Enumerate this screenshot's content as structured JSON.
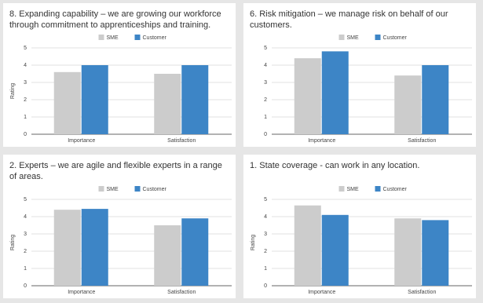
{
  "chart_data": [
    {
      "type": "bar",
      "title": "8. Expanding capability – we are growing our workforce through commitment to apprenticeships and training.",
      "y_label": "Rating",
      "categories": [
        "Importance",
        "Satisfaction"
      ],
      "series": [
        {
          "name": "SME",
          "color": "#cccccc",
          "values": [
            3.6,
            3.5
          ]
        },
        {
          "name": "Customer",
          "color": "#3d85c6",
          "values": [
            4.0,
            4.0
          ]
        }
      ],
      "ylim": [
        0,
        5
      ],
      "yticks": [
        0,
        1,
        2,
        3,
        4,
        5
      ],
      "grid": true
    },
    {
      "type": "bar",
      "title": "6. Risk mitigation – we manage risk on behalf of our customers.",
      "categories": [
        "Importance",
        "Satisfaction"
      ],
      "series": [
        {
          "name": "SME",
          "color": "#cccccc",
          "values": [
            4.4,
            3.4
          ]
        },
        {
          "name": "Customer",
          "color": "#3d85c6",
          "values": [
            4.8,
            4.0
          ]
        }
      ],
      "ylim": [
        0,
        5
      ],
      "yticks": [
        0,
        1,
        2,
        3,
        4,
        5
      ],
      "grid": true
    },
    {
      "type": "bar",
      "title": "2. Experts – we are agile and flexible experts in a range of areas.",
      "y_label": "Rating",
      "categories": [
        "Importance",
        "Satisfaction"
      ],
      "series": [
        {
          "name": "SME",
          "color": "#cccccc",
          "values": [
            4.4,
            3.5
          ]
        },
        {
          "name": "Customer",
          "color": "#3d85c6",
          "values": [
            4.45,
            3.9
          ]
        }
      ],
      "ylim": [
        0,
        5
      ],
      "yticks": [
        0,
        1,
        2,
        3,
        4,
        5
      ],
      "grid": true
    },
    {
      "type": "bar",
      "title": "1. State coverage - can work in any location.",
      "y_label": "Rating",
      "categories": [
        "Importance",
        "Satisfaction"
      ],
      "series": [
        {
          "name": "SME",
          "color": "#cccccc",
          "values": [
            4.65,
            3.9
          ]
        },
        {
          "name": "Customer",
          "color": "#3d85c6",
          "values": [
            4.1,
            3.8
          ]
        }
      ],
      "ylim": [
        0,
        5
      ],
      "yticks": [
        0,
        1,
        2,
        3,
        4,
        5
      ],
      "grid": true
    }
  ]
}
